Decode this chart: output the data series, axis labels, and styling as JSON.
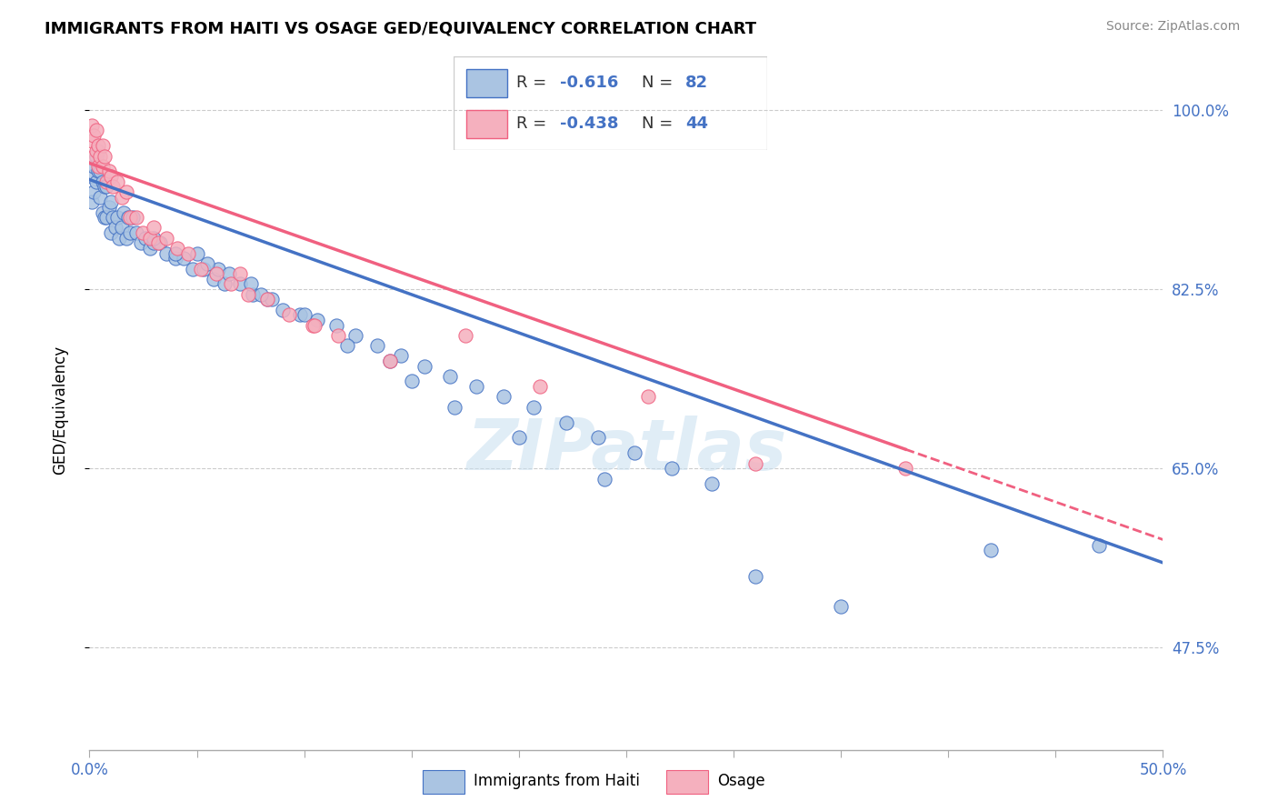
{
  "title": "IMMIGRANTS FROM HAITI VS OSAGE GED/EQUIVALENCY CORRELATION CHART",
  "source": "Source: ZipAtlas.com",
  "ylabel": "GED/Equivalency",
  "xmin": 0.0,
  "xmax": 0.5,
  "ymin": 0.375,
  "ymax": 1.04,
  "yticks": [
    0.475,
    0.65,
    0.825,
    1.0
  ],
  "ytick_labels": [
    "47.5%",
    "65.0%",
    "82.5%",
    "100.0%"
  ],
  "xticks": [
    0.0,
    0.05,
    0.1,
    0.15,
    0.2,
    0.25,
    0.3,
    0.35,
    0.4,
    0.45,
    0.5
  ],
  "xtick_labels_shown": {
    "0.0": "0.0%",
    "0.5": "50.0%"
  },
  "haiti_R": -0.616,
  "haiti_N": 82,
  "osage_R": -0.438,
  "osage_N": 44,
  "haiti_color": "#aac4e2",
  "osage_color": "#f5b0be",
  "haiti_line_color": "#4472c4",
  "osage_line_color": "#f06080",
  "watermark": "ZIPatlas",
  "haiti_scatter_x": [
    0.001,
    0.001,
    0.002,
    0.002,
    0.003,
    0.003,
    0.004,
    0.004,
    0.005,
    0.005,
    0.006,
    0.006,
    0.007,
    0.007,
    0.008,
    0.008,
    0.009,
    0.01,
    0.01,
    0.011,
    0.012,
    0.013,
    0.014,
    0.015,
    0.016,
    0.017,
    0.018,
    0.019,
    0.02,
    0.022,
    0.024,
    0.026,
    0.028,
    0.03,
    0.033,
    0.036,
    0.04,
    0.044,
    0.048,
    0.053,
    0.058,
    0.063,
    0.07,
    0.076,
    0.083,
    0.09,
    0.098,
    0.106,
    0.115,
    0.124,
    0.134,
    0.145,
    0.156,
    0.168,
    0.18,
    0.193,
    0.207,
    0.222,
    0.237,
    0.254,
    0.271,
    0.29,
    0.05,
    0.06,
    0.075,
    0.085,
    0.1,
    0.12,
    0.15,
    0.17,
    0.2,
    0.24,
    0.03,
    0.04,
    0.055,
    0.065,
    0.08,
    0.14,
    0.31,
    0.35,
    0.42,
    0.47
  ],
  "haiti_scatter_y": [
    0.935,
    0.91,
    0.945,
    0.92,
    0.955,
    0.93,
    0.96,
    0.94,
    0.94,
    0.915,
    0.93,
    0.9,
    0.925,
    0.895,
    0.925,
    0.895,
    0.905,
    0.91,
    0.88,
    0.895,
    0.885,
    0.895,
    0.875,
    0.885,
    0.9,
    0.875,
    0.895,
    0.88,
    0.895,
    0.88,
    0.87,
    0.875,
    0.865,
    0.87,
    0.87,
    0.86,
    0.855,
    0.855,
    0.845,
    0.845,
    0.835,
    0.83,
    0.83,
    0.82,
    0.815,
    0.805,
    0.8,
    0.795,
    0.79,
    0.78,
    0.77,
    0.76,
    0.75,
    0.74,
    0.73,
    0.72,
    0.71,
    0.695,
    0.68,
    0.665,
    0.65,
    0.635,
    0.86,
    0.845,
    0.83,
    0.815,
    0.8,
    0.77,
    0.735,
    0.71,
    0.68,
    0.64,
    0.875,
    0.86,
    0.85,
    0.84,
    0.82,
    0.755,
    0.545,
    0.515,
    0.57,
    0.575
  ],
  "osage_scatter_x": [
    0.001,
    0.001,
    0.002,
    0.002,
    0.003,
    0.003,
    0.004,
    0.004,
    0.005,
    0.006,
    0.006,
    0.007,
    0.008,
    0.009,
    0.01,
    0.011,
    0.013,
    0.015,
    0.017,
    0.019,
    0.022,
    0.025,
    0.028,
    0.032,
    0.036,
    0.041,
    0.046,
    0.052,
    0.059,
    0.066,
    0.074,
    0.083,
    0.093,
    0.104,
    0.116,
    0.03,
    0.07,
    0.105,
    0.14,
    0.175,
    0.21,
    0.26,
    0.31,
    0.38
  ],
  "osage_scatter_y": [
    0.985,
    0.97,
    0.975,
    0.955,
    0.98,
    0.96,
    0.965,
    0.945,
    0.955,
    0.965,
    0.945,
    0.955,
    0.93,
    0.94,
    0.935,
    0.925,
    0.93,
    0.915,
    0.92,
    0.895,
    0.895,
    0.88,
    0.875,
    0.87,
    0.875,
    0.865,
    0.86,
    0.845,
    0.84,
    0.83,
    0.82,
    0.815,
    0.8,
    0.79,
    0.78,
    0.885,
    0.84,
    0.79,
    0.755,
    0.78,
    0.73,
    0.72,
    0.655,
    0.65
  ],
  "haiti_line_x": [
    0.0,
    0.5
  ],
  "haiti_line_y": [
    0.932,
    0.558
  ],
  "osage_line_x": [
    0.0,
    0.43
  ],
  "osage_line_y": [
    0.948,
    0.632
  ]
}
